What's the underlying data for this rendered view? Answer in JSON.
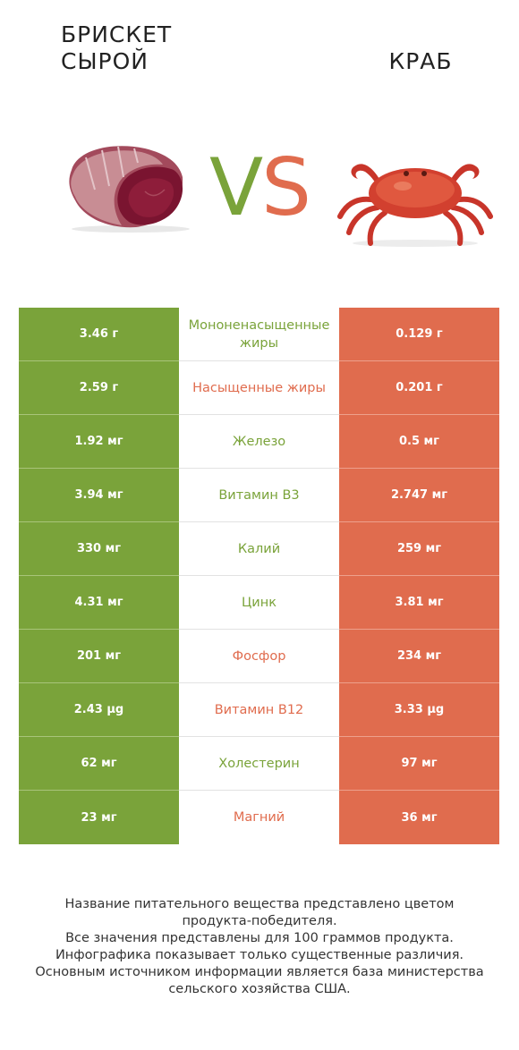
{
  "header": {
    "left_title_line1": "БРИСКЕТ",
    "left_title_line2": "СЫРОЙ",
    "right_title": "КРАБ",
    "vs_v": "V",
    "vs_s": "S"
  },
  "colors": {
    "left_product": "#7aa33a",
    "right_product": "#e06c4e"
  },
  "rows": [
    {
      "nutrient": "Мононенасыщенные жиры",
      "left": "3.46 г",
      "right": "0.129 г",
      "winner": "left"
    },
    {
      "nutrient": "Насыщенные жиры",
      "left": "2.59 г",
      "right": "0.201 г",
      "winner": "right"
    },
    {
      "nutrient": "Железо",
      "left": "1.92 мг",
      "right": "0.5 мг",
      "winner": "left"
    },
    {
      "nutrient": "Витамин B3",
      "left": "3.94 мг",
      "right": "2.747 мг",
      "winner": "left"
    },
    {
      "nutrient": "Калий",
      "left": "330 мг",
      "right": "259 мг",
      "winner": "left"
    },
    {
      "nutrient": "Цинк",
      "left": "4.31 мг",
      "right": "3.81 мг",
      "winner": "left"
    },
    {
      "nutrient": "Фосфор",
      "left": "201 мг",
      "right": "234 мг",
      "winner": "right"
    },
    {
      "nutrient": "Витамин B12",
      "left": "2.43 µg",
      "right": "3.33 µg",
      "winner": "right"
    },
    {
      "nutrient": "Холестерин",
      "left": "62 мг",
      "right": "97 мг",
      "winner": "left"
    },
    {
      "nutrient": "Магний",
      "left": "23 мг",
      "right": "36 мг",
      "winner": "right"
    }
  ],
  "footer": {
    "line1": "Название питательного вещества представлено цветом",
    "line2": "продукта-победителя.",
    "line3": "Все значения представлены для 100 граммов продукта.",
    "line4": "Инфографика показывает только существенные различия.",
    "line5": "Основным источником информации является база министерства",
    "line6": "сельского хозяйства США."
  }
}
